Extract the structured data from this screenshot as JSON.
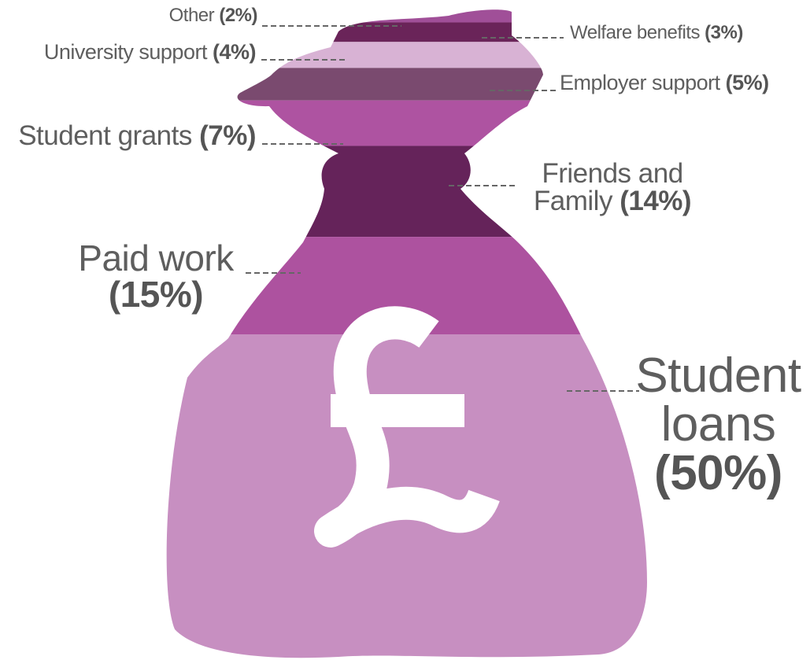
{
  "chart_data": {
    "type": "bag",
    "categories": [
      "Other",
      "Welfare benefits",
      "University support",
      "Employer support",
      "Student grants",
      "Friends and Family",
      "Paid work",
      "Student loans"
    ],
    "values": [
      2,
      3,
      4,
      5,
      7,
      14,
      15,
      50
    ],
    "value_labels": [
      "(2%)",
      "(3%)",
      "(4%)",
      "(5%)",
      "(7%)",
      "(14%)",
      "(15%)",
      "(50%)"
    ],
    "colors": [
      "#a04f98",
      "#6a2459",
      "#d8b2d4",
      "#7a4a6f",
      "#ae53a1",
      "#65235a",
      "#ad529f",
      "#c78fc1"
    ]
  }
}
